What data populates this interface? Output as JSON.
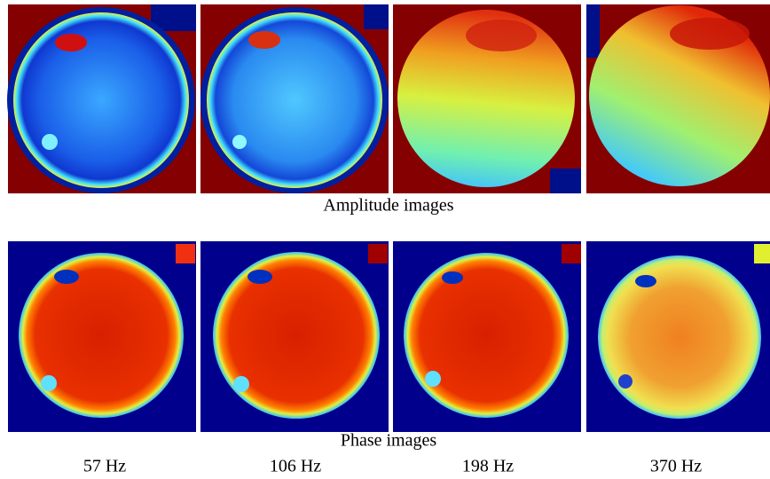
{
  "figure": {
    "rows": [
      {
        "caption": "Amplitude images"
      },
      {
        "caption": "Phase images"
      }
    ],
    "frequencies": [
      "57 Hz",
      "106 Hz",
      "198 Hz",
      "370 Hz"
    ]
  }
}
